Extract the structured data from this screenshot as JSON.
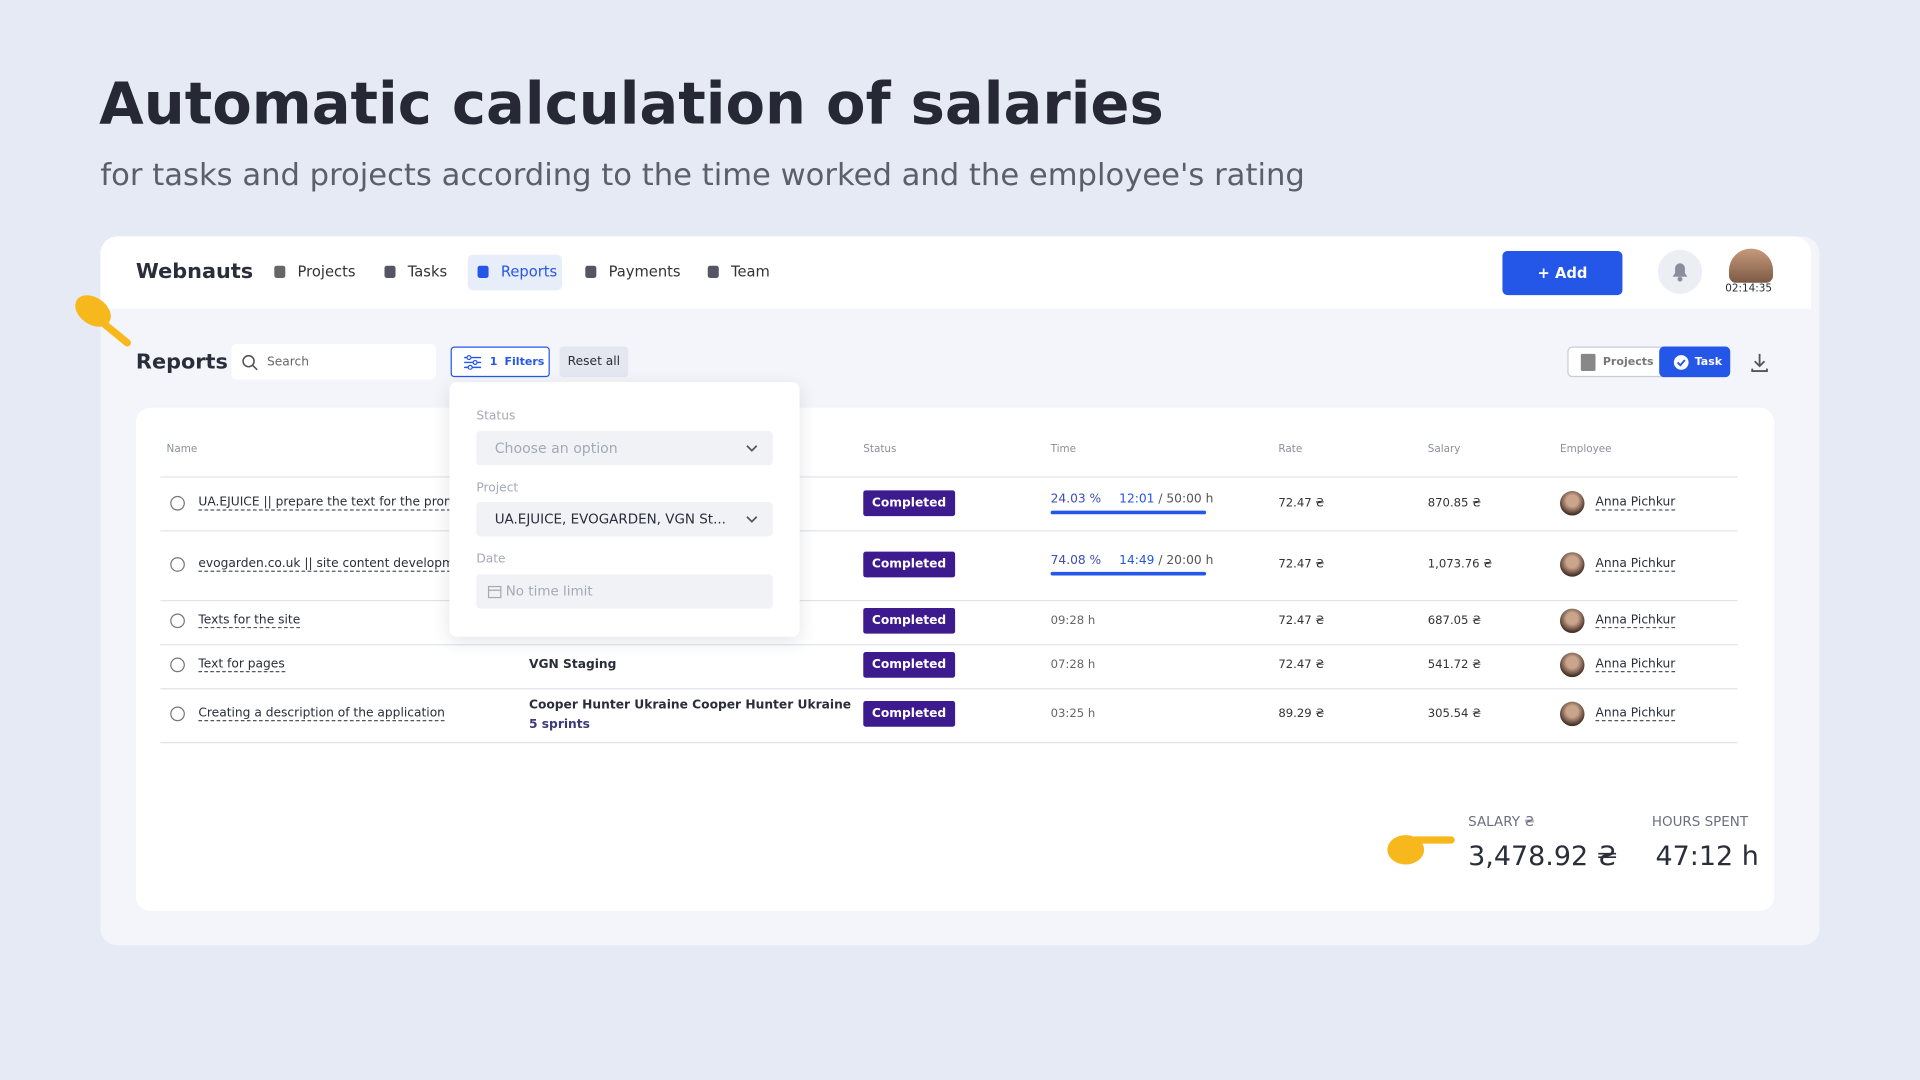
{
  "header": {
    "title": "Automatic calculation of salaries",
    "subtitle": "for tasks and projects according to the time worked and the employee's rating"
  },
  "app": {
    "brand": "Webnauts",
    "nav": [
      "Projects",
      "Tasks",
      "Reports",
      "Payments",
      "Team"
    ],
    "add_button": "+ Add",
    "timer": "02:14:35"
  },
  "reports": {
    "title": "Reports",
    "search_placeholder": "Search",
    "filters_count": 1,
    "filters_label": "Filters",
    "reset": "Reset all",
    "toggle": [
      "Projects",
      "Task"
    ],
    "columns": [
      "Name",
      "Status",
      "Time",
      "Rate",
      "Salary",
      "Employee"
    ],
    "rows": [
      {
        "name": "UA.EJUICE || prepare the text for the promo",
        "status": "Completed",
        "time": {
          "percent": "24.03 %",
          "worked": "12:01",
          "planned": "/ 50:00 h"
        },
        "rate": "72.47 ₴",
        "salary": "870.85 ₴",
        "employee": "Anna Pichkur"
      },
      {
        "name": "evogarden.co.uk || site content developmen",
        "status": "Completed",
        "time": {
          "percent": "74.08 %",
          "worked": "14:49",
          "planned": "/ 20:00 h"
        },
        "rate": "72.47 ₴",
        "salary": "1,073.76 ₴",
        "employee": "Anna Pichkur"
      },
      {
        "name": "Texts for the site",
        "status": "Completed",
        "time": "09:28 h",
        "rate": "72.47 ₴",
        "salary": "687.05 ₴",
        "employee": "Anna Pichkur"
      },
      {
        "name": "Text for pages",
        "project": "VGN Staging",
        "status": "Completed",
        "time": "07:28 h",
        "rate": "72.47 ₴",
        "salary": "541.72 ₴",
        "employee": "Anna Pichkur"
      },
      {
        "name": "Creating a description of the application",
        "project": "Cooper Hunter Ukraine Cooper Hunter Ukraine",
        "project_sub": "5 sprints",
        "status": "Completed",
        "time": "03:25 h",
        "rate": "89.29 ₴",
        "salary": "305.54 ₴",
        "employee": "Anna Pichkur"
      }
    ]
  },
  "filter_panel": {
    "status_label": "Status",
    "status_placeholder": "Choose an option",
    "project_label": "Project",
    "project_value": "UA.EJUICE, EVOGARDEN, VGN St...",
    "date_label": "Date",
    "date_placeholder": "No time limit"
  },
  "totals": {
    "salary_label": "SALARY ₴",
    "salary": "3,478.92 ₴",
    "hours_label": "HOURS SPENT",
    "hours": "47:12 h"
  }
}
